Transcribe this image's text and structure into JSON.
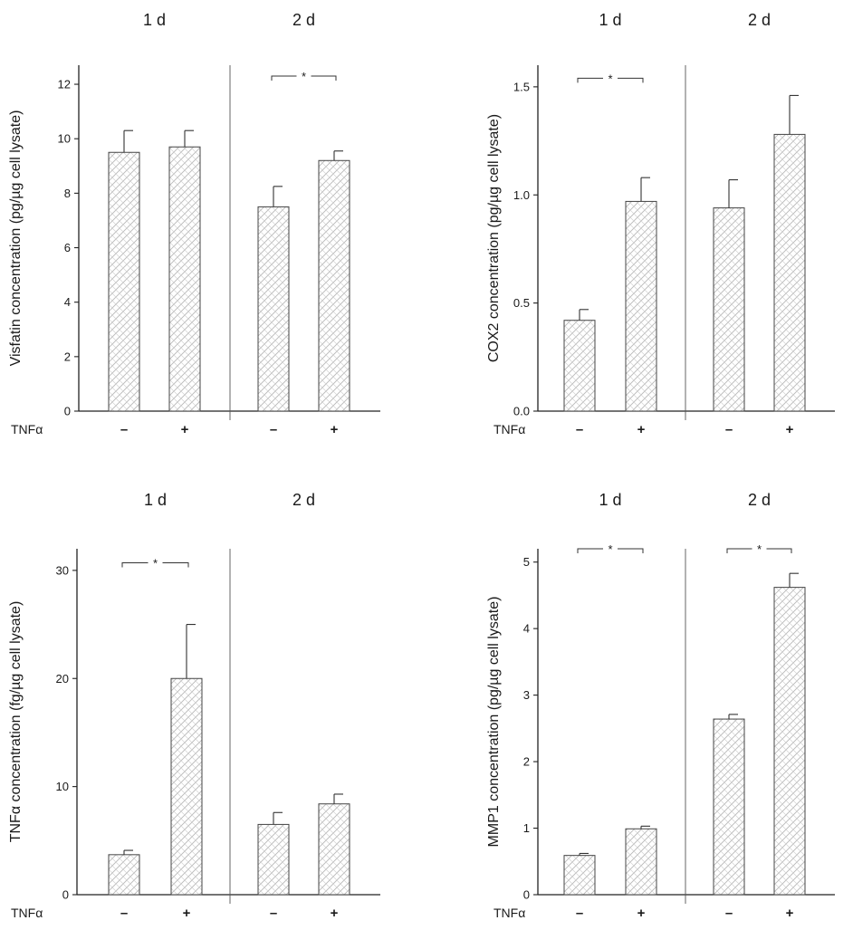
{
  "chart_data": [
    {
      "type": "bar",
      "ylabel": "Visfatin concentration (pg/µg cell lysate)",
      "ylim": [
        0,
        12.7
      ],
      "yticks": [
        "0",
        "2",
        "4",
        "6",
        "8",
        "10",
        "12"
      ],
      "ytick_values": [
        0,
        2,
        4,
        6,
        8,
        10,
        12
      ],
      "group_labels": [
        "1 d",
        "2 d"
      ],
      "treatment_row_label": "TNFα",
      "treatment_labels": [
        "–",
        "+",
        "–",
        "+"
      ],
      "values": [
        9.5,
        9.7,
        7.5,
        9.2
      ],
      "errors": [
        0.8,
        0.6,
        0.75,
        0.35
      ],
      "significance": [
        {
          "from": 2,
          "to": 3,
          "label": "*",
          "y": 12.3
        }
      ]
    },
    {
      "type": "bar",
      "ylabel": "COX2 concentration (pg/µg cell lysate)",
      "ylim": [
        0,
        1.6
      ],
      "yticks": [
        "0.0",
        "0.5",
        "1.0",
        "1.5"
      ],
      "ytick_values": [
        0,
        0.5,
        1.0,
        1.5
      ],
      "group_labels": [
        "1 d",
        "2 d"
      ],
      "treatment_row_label": "TNFα",
      "treatment_labels": [
        "–",
        "+",
        "–",
        "+"
      ],
      "values": [
        0.42,
        0.97,
        0.94,
        1.28
      ],
      "errors": [
        0.05,
        0.11,
        0.13,
        0.18
      ],
      "significance": [
        {
          "from": 0,
          "to": 1,
          "label": "*",
          "y": 1.54
        }
      ]
    },
    {
      "type": "bar",
      "ylabel": "TNFα concentration (fg/µg cell lysate)",
      "ylim": [
        0,
        32
      ],
      "yticks": [
        "0",
        "10",
        "20",
        "30"
      ],
      "ytick_values": [
        0,
        10,
        20,
        30
      ],
      "group_labels": [
        "1 d",
        "2 d"
      ],
      "treatment_row_label": "TNFα",
      "treatment_labels": [
        "–",
        "+",
        "–",
        "+"
      ],
      "values": [
        3.7,
        20.0,
        6.5,
        8.4
      ],
      "errors": [
        0.4,
        5.0,
        1.1,
        0.9
      ],
      "significance": [
        {
          "from": 0,
          "to": 1,
          "label": "*",
          "y": 30.7
        }
      ]
    },
    {
      "type": "bar",
      "ylabel": "MMP1 concentration (pg/µg cell lysate)",
      "ylim": [
        0,
        5.2
      ],
      "yticks": [
        "0",
        "1",
        "2",
        "3",
        "4",
        "5"
      ],
      "ytick_values": [
        0,
        1,
        2,
        3,
        4,
        5
      ],
      "group_labels": [
        "1 d",
        "2 d"
      ],
      "treatment_row_label": "TNFα",
      "treatment_labels": [
        "–",
        "+",
        "–",
        "+"
      ],
      "values": [
        0.59,
        0.99,
        2.64,
        4.62
      ],
      "errors": [
        0.03,
        0.04,
        0.07,
        0.21
      ],
      "significance": [
        {
          "from": 0,
          "to": 1,
          "label": "*",
          "y": 5.2
        },
        {
          "from": 2,
          "to": 3,
          "label": "*",
          "y": 5.2
        }
      ]
    }
  ]
}
